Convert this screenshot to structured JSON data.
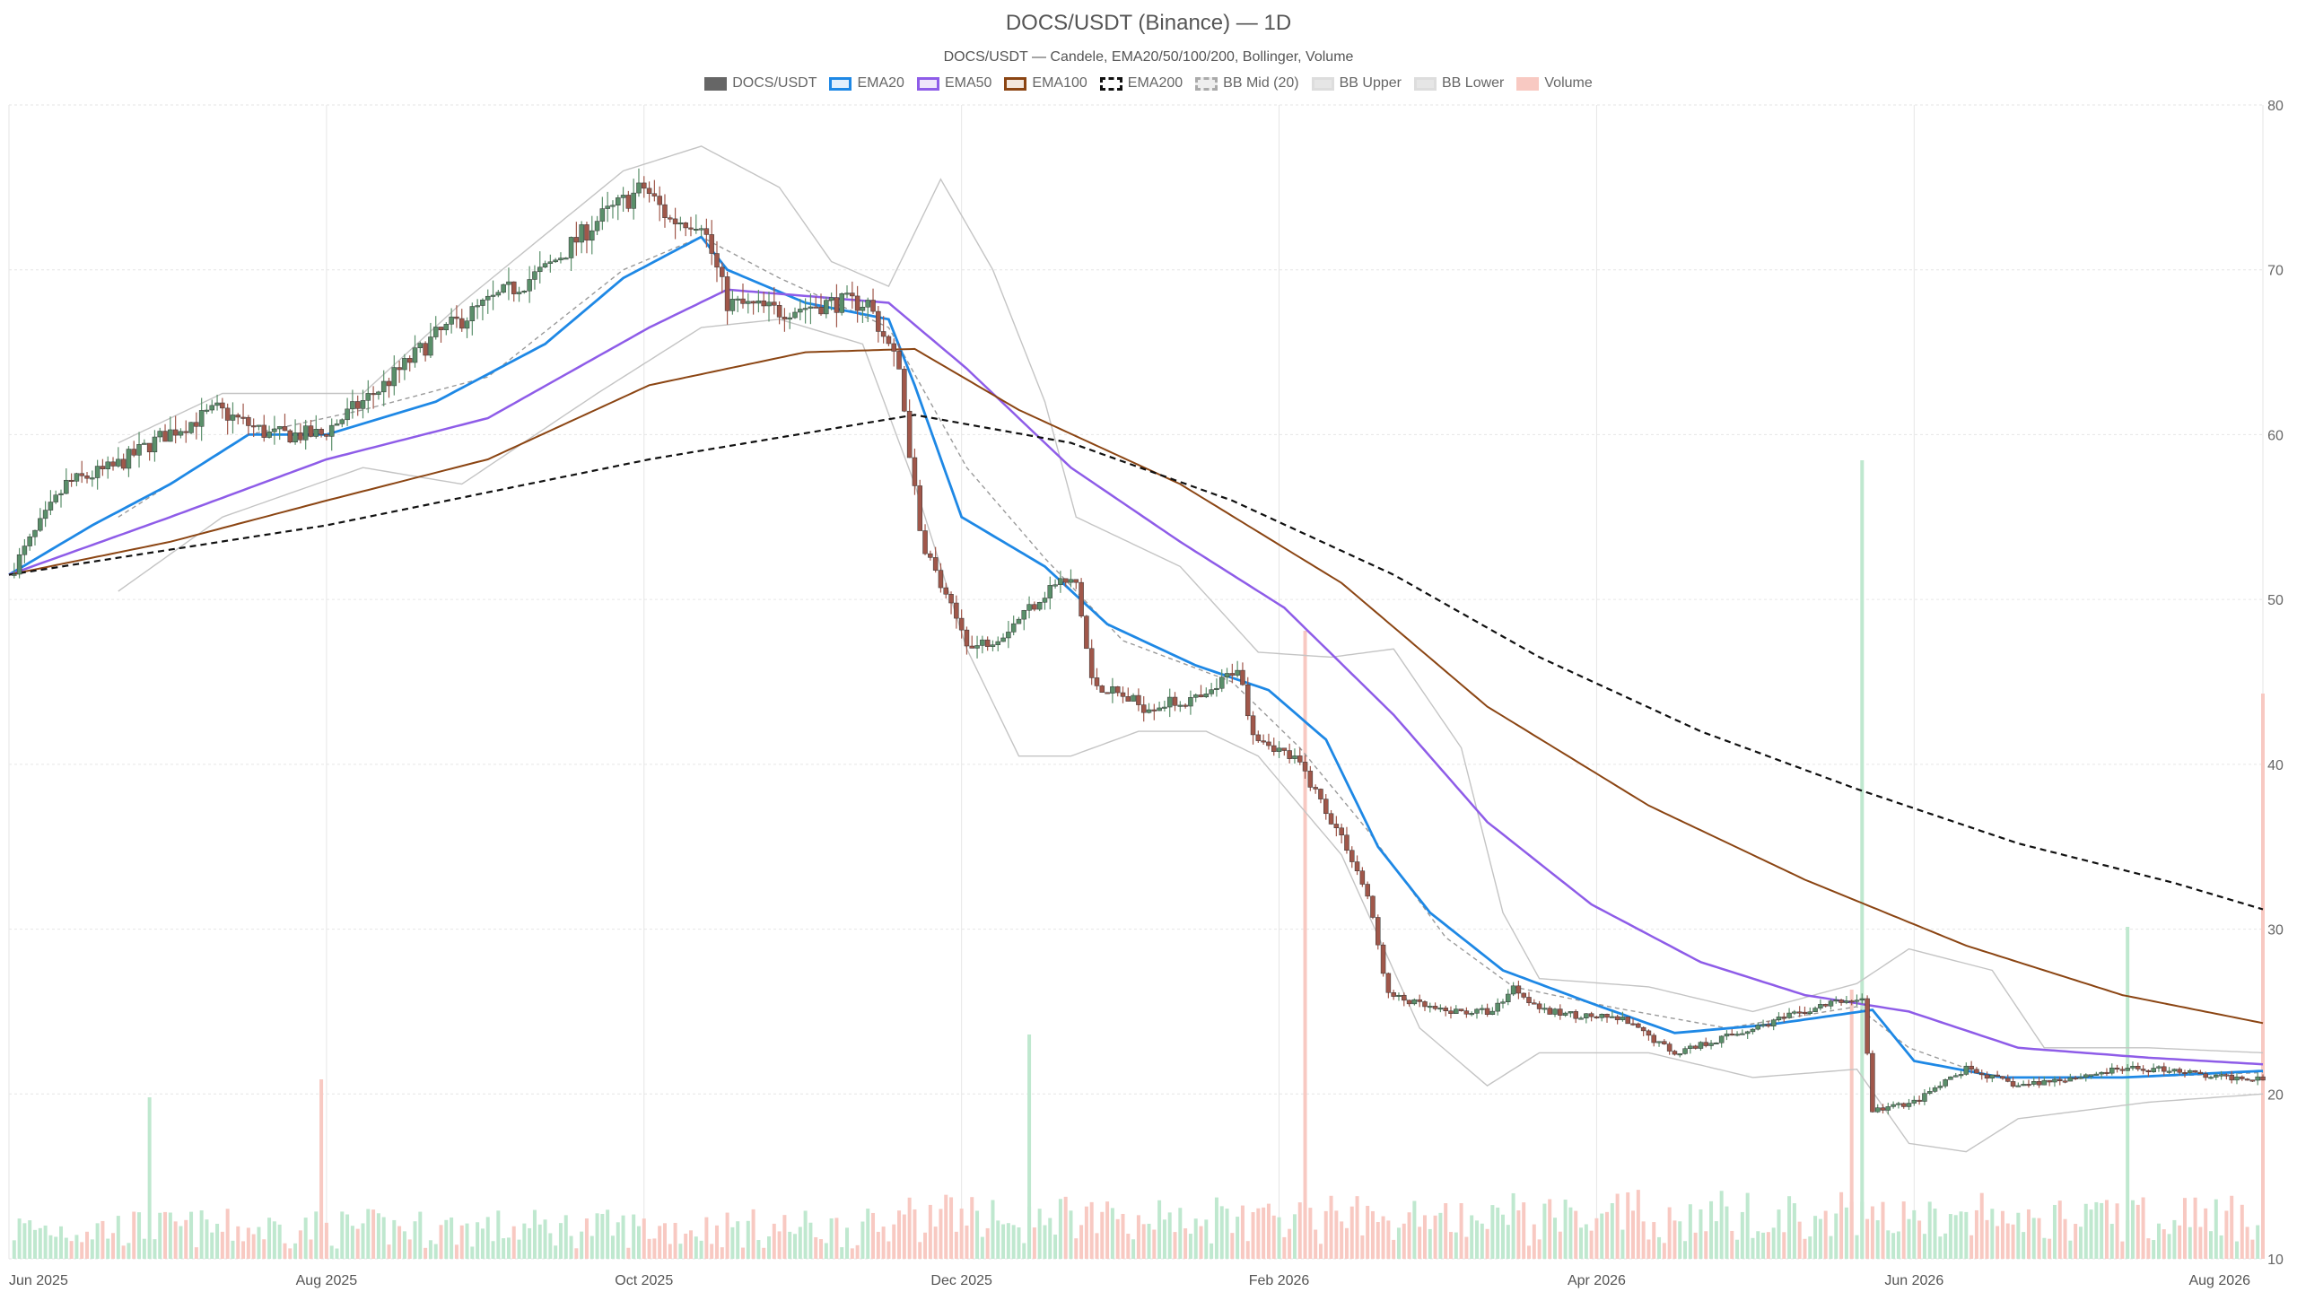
{
  "chart_data": {
    "type": "candlestick",
    "title": "DOCS/USDT (Binance) — 1D",
    "subtitle": "DOCS/USDT — Candele, EMA20/50/100/200, Bollinger, Volume",
    "legend_position": "top-center",
    "grid": true,
    "ylim": [
      10,
      80
    ],
    "y_ticks": [
      10,
      20,
      30,
      40,
      50,
      60,
      70,
      80
    ],
    "y_axis_side": "right",
    "x_range": [
      "2025-05-25",
      "2026-08-01"
    ],
    "x_ticks": [
      {
        "date": "2025-05-25",
        "label": "Jun 2025"
      },
      {
        "date": "2025-07-25",
        "label": "Aug 2025"
      },
      {
        "date": "2025-09-24",
        "label": "Oct 2025"
      },
      {
        "date": "2025-11-24",
        "label": "Dec 2025"
      },
      {
        "date": "2026-01-24",
        "label": "Feb 2026"
      },
      {
        "date": "2026-03-26",
        "label": "Apr 2026"
      },
      {
        "date": "2026-05-26",
        "label": "Jun 2026"
      },
      {
        "date": "2026-08-01",
        "label": "Aug 2026"
      }
    ],
    "legend": [
      {
        "label": "DOCS/USDT",
        "color": "#666666",
        "fill": "#666666",
        "dash": false
      },
      {
        "label": "EMA20",
        "color": "#1e88e5",
        "fill": "#e3f0fc",
        "dash": false
      },
      {
        "label": "EMA50",
        "color": "#8e5ce8",
        "fill": "#efe6fb",
        "dash": false
      },
      {
        "label": "EMA100",
        "color": "#8b4513",
        "fill": "#f3e7dd",
        "dash": false
      },
      {
        "label": "EMA200",
        "color": "#111111",
        "fill": "#ffffff",
        "dash": true
      },
      {
        "label": "BB Mid (20)",
        "color": "#aaaaaa",
        "fill": "#eeeeee",
        "dash": true
      },
      {
        "label": "BB Upper",
        "color": "#dddddd",
        "fill": "#e6e6e6",
        "dash": false
      },
      {
        "label": "BB Lower",
        "color": "#dddddd",
        "fill": "#e6e6e6",
        "dash": false
      },
      {
        "label": "Volume",
        "color": "#f8c9c2",
        "fill": "#f8c9c2",
        "dash": false
      }
    ],
    "colors": {
      "up": "#5a8f6a",
      "down": "#a0574a",
      "vol_up": "#bfe8cf",
      "vol_down": "#f8c9c2",
      "ema20": "#1e88e5",
      "ema50": "#8e5ce8",
      "ema100": "#8b4513",
      "ema200": "#111111",
      "bb": "#c4c4c4",
      "bb_mid": "#9a9a9a",
      "grid": "#e6e6e6"
    },
    "price_path": [
      [
        "2025-05-25",
        51.5
      ],
      [
        "2025-06-05",
        57
      ],
      [
        "2025-06-14",
        58
      ],
      [
        "2025-06-24",
        60
      ],
      [
        "2025-07-04",
        61.5
      ],
      [
        "2025-07-14",
        60
      ],
      [
        "2025-07-24",
        60
      ],
      [
        "2025-08-05",
        63
      ],
      [
        "2025-08-15",
        66
      ],
      [
        "2025-08-25",
        68
      ],
      [
        "2025-09-05",
        70
      ],
      [
        "2025-09-15",
        73
      ],
      [
        "2025-09-24",
        75
      ],
      [
        "2025-09-29",
        73
      ],
      [
        "2025-10-05",
        73
      ],
      [
        "2025-10-10",
        68
      ],
      [
        "2025-10-20",
        67.5
      ],
      [
        "2025-10-30",
        68
      ],
      [
        "2025-11-06",
        68
      ],
      [
        "2025-11-12",
        64
      ],
      [
        "2025-11-16",
        54
      ],
      [
        "2025-11-21",
        50
      ],
      [
        "2025-11-26",
        47
      ],
      [
        "2025-12-02",
        48
      ],
      [
        "2025-12-12",
        51
      ],
      [
        "2025-12-16",
        51
      ],
      [
        "2025-12-19",
        45
      ],
      [
        "2025-12-29",
        43.5
      ],
      [
        "2026-01-10",
        44
      ],
      [
        "2026-01-16",
        46
      ],
      [
        "2026-01-19",
        42
      ],
      [
        "2026-01-28",
        40
      ],
      [
        "2026-02-06",
        35
      ],
      [
        "2026-02-10",
        32
      ],
      [
        "2026-02-14",
        26
      ],
      [
        "2026-02-24",
        25
      ],
      [
        "2026-03-06",
        25
      ],
      [
        "2026-03-10",
        26.5
      ],
      [
        "2026-03-16",
        25
      ],
      [
        "2026-03-31",
        24.5
      ],
      [
        "2026-04-10",
        22.5
      ],
      [
        "2026-04-20",
        23.5
      ],
      [
        "2026-04-30",
        24.5
      ],
      [
        "2026-05-10",
        25.5
      ],
      [
        "2026-05-16",
        25.8
      ],
      [
        "2026-05-18",
        19
      ],
      [
        "2026-05-26",
        19.5
      ],
      [
        "2026-06-05",
        21.5
      ],
      [
        "2026-06-15",
        20.5
      ],
      [
        "2026-06-25",
        21
      ],
      [
        "2026-07-05",
        21.5
      ],
      [
        "2026-07-15",
        21.5
      ],
      [
        "2026-07-22",
        21
      ],
      [
        "2026-08-01",
        21
      ]
    ],
    "series": [
      {
        "name": "EMA20",
        "points": [
          [
            "2025-05-25",
            51.5
          ],
          [
            "2025-06-10",
            54.5
          ],
          [
            "2025-06-25",
            57
          ],
          [
            "2025-07-10",
            60
          ],
          [
            "2025-07-25",
            60
          ],
          [
            "2025-08-15",
            62
          ],
          [
            "2025-09-05",
            65.5
          ],
          [
            "2025-09-20",
            69.5
          ],
          [
            "2025-10-05",
            72
          ],
          [
            "2025-10-10",
            70
          ],
          [
            "2025-10-25",
            68
          ],
          [
            "2025-11-10",
            67
          ],
          [
            "2025-11-15",
            63
          ],
          [
            "2025-11-24",
            55
          ],
          [
            "2025-12-10",
            52
          ],
          [
            "2025-12-22",
            48.5
          ],
          [
            "2026-01-08",
            46
          ],
          [
            "2026-01-22",
            44.5
          ],
          [
            "2026-02-02",
            41.5
          ],
          [
            "2026-02-12",
            35
          ],
          [
            "2026-02-22",
            31
          ],
          [
            "2026-03-08",
            27.5
          ],
          [
            "2026-03-25",
            25.5
          ],
          [
            "2026-04-10",
            23.7
          ],
          [
            "2026-04-28",
            24.2
          ],
          [
            "2026-05-18",
            25.1
          ],
          [
            "2026-05-26",
            22
          ],
          [
            "2026-06-12",
            21
          ],
          [
            "2026-07-05",
            21
          ],
          [
            "2026-08-01",
            21.4
          ]
        ]
      },
      {
        "name": "EMA50",
        "points": [
          [
            "2025-05-25",
            51.5
          ],
          [
            "2025-06-25",
            55
          ],
          [
            "2025-07-25",
            58.5
          ],
          [
            "2025-08-25",
            61
          ],
          [
            "2025-09-25",
            66.5
          ],
          [
            "2025-10-10",
            68.8
          ],
          [
            "2025-11-10",
            68
          ],
          [
            "2025-11-25",
            64
          ],
          [
            "2025-12-15",
            58
          ],
          [
            "2026-01-05",
            53.5
          ],
          [
            "2026-01-25",
            49.5
          ],
          [
            "2026-02-15",
            43
          ],
          [
            "2026-03-05",
            36.5
          ],
          [
            "2026-03-25",
            31.5
          ],
          [
            "2026-04-15",
            28
          ],
          [
            "2026-05-05",
            26
          ],
          [
            "2026-05-25",
            25
          ],
          [
            "2026-06-15",
            22.8
          ],
          [
            "2026-07-10",
            22.2
          ],
          [
            "2026-08-01",
            21.8
          ]
        ]
      },
      {
        "name": "EMA100",
        "points": [
          [
            "2025-05-25",
            51.5
          ],
          [
            "2025-06-25",
            53.5
          ],
          [
            "2025-07-25",
            56
          ],
          [
            "2025-08-25",
            58.5
          ],
          [
            "2025-09-25",
            63
          ],
          [
            "2025-10-25",
            65
          ],
          [
            "2025-11-15",
            65.2
          ],
          [
            "2025-12-05",
            61.5
          ],
          [
            "2026-01-05",
            57
          ],
          [
            "2026-02-05",
            51
          ],
          [
            "2026-03-05",
            43.5
          ],
          [
            "2026-04-05",
            37.5
          ],
          [
            "2026-05-05",
            33
          ],
          [
            "2026-06-05",
            29
          ],
          [
            "2026-07-05",
            26
          ],
          [
            "2026-08-01",
            24.3
          ]
        ]
      },
      {
        "name": "EMA200",
        "points": [
          [
            "2025-05-25",
            51.5
          ],
          [
            "2025-07-25",
            54.5
          ],
          [
            "2025-09-25",
            58.5
          ],
          [
            "2025-11-15",
            61.2
          ],
          [
            "2025-12-15",
            59.5
          ],
          [
            "2026-01-15",
            56
          ],
          [
            "2026-02-15",
            51.5
          ],
          [
            "2026-03-15",
            46.5
          ],
          [
            "2026-04-15",
            42
          ],
          [
            "2026-05-15",
            38.5
          ],
          [
            "2026-06-15",
            35.2
          ],
          [
            "2026-07-15",
            32.8
          ],
          [
            "2026-08-01",
            31.2
          ]
        ]
      },
      {
        "name": "BB Mid (20)",
        "points": [
          [
            "2025-06-15",
            55
          ],
          [
            "2025-07-10",
            60
          ],
          [
            "2025-08-01",
            61.5
          ],
          [
            "2025-08-25",
            63.5
          ],
          [
            "2025-09-20",
            70
          ],
          [
            "2025-10-05",
            72
          ],
          [
            "2025-10-20",
            69.5
          ],
          [
            "2025-11-10",
            66.5
          ],
          [
            "2025-11-25",
            58
          ],
          [
            "2025-12-10",
            52.5
          ],
          [
            "2025-12-25",
            47.5
          ],
          [
            "2026-01-15",
            45
          ],
          [
            "2026-01-28",
            41
          ],
          [
            "2026-02-10",
            36
          ],
          [
            "2026-02-25",
            29.5
          ],
          [
            "2026-03-10",
            26.5
          ],
          [
            "2026-03-30",
            25.2
          ],
          [
            "2026-04-20",
            24
          ],
          [
            "2026-05-15",
            25.3
          ],
          [
            "2026-05-25",
            22.8
          ],
          [
            "2026-06-10",
            21
          ],
          [
            "2026-07-05",
            21
          ],
          [
            "2026-08-01",
            21.3
          ]
        ]
      },
      {
        "name": "BB Upper",
        "points": [
          [
            "2025-06-15",
            59.5
          ],
          [
            "2025-07-05",
            62.5
          ],
          [
            "2025-08-01",
            62.5
          ],
          [
            "2025-08-20",
            68
          ],
          [
            "2025-09-20",
            76
          ],
          [
            "2025-10-05",
            77.5
          ],
          [
            "2025-10-20",
            75
          ],
          [
            "2025-10-30",
            70.5
          ],
          [
            "2025-11-10",
            69
          ],
          [
            "2025-11-20",
            75.5
          ],
          [
            "2025-11-30",
            70
          ],
          [
            "2025-12-10",
            62
          ],
          [
            "2025-12-16",
            55
          ],
          [
            "2026-01-05",
            52
          ],
          [
            "2026-01-20",
            46.8
          ],
          [
            "2026-02-03",
            46.5
          ],
          [
            "2026-02-15",
            47
          ],
          [
            "2026-02-28",
            41
          ],
          [
            "2026-03-08",
            31
          ],
          [
            "2026-03-15",
            27
          ],
          [
            "2026-04-05",
            26.5
          ],
          [
            "2026-04-25",
            25
          ],
          [
            "2026-05-15",
            26.7
          ],
          [
            "2026-05-25",
            28.8
          ],
          [
            "2026-06-10",
            27.5
          ],
          [
            "2026-06-20",
            22.8
          ],
          [
            "2026-07-10",
            22.8
          ],
          [
            "2026-08-01",
            22.5
          ]
        ]
      },
      {
        "name": "BB Lower",
        "points": [
          [
            "2025-06-15",
            50.5
          ],
          [
            "2025-07-05",
            55
          ],
          [
            "2025-08-01",
            58
          ],
          [
            "2025-08-20",
            57
          ],
          [
            "2025-09-15",
            62.5
          ],
          [
            "2025-10-05",
            66.5
          ],
          [
            "2025-10-20",
            67
          ],
          [
            "2025-11-05",
            65.5
          ],
          [
            "2025-11-15",
            57
          ],
          [
            "2025-11-25",
            47
          ],
          [
            "2025-12-05",
            40.5
          ],
          [
            "2025-12-15",
            40.5
          ],
          [
            "2025-12-28",
            42
          ],
          [
            "2026-01-10",
            42
          ],
          [
            "2026-01-20",
            40.5
          ],
          [
            "2026-02-05",
            34.5
          ],
          [
            "2026-02-20",
            24
          ],
          [
            "2026-03-05",
            20.5
          ],
          [
            "2026-03-15",
            22.5
          ],
          [
            "2026-04-05",
            22.5
          ],
          [
            "2026-04-25",
            21
          ],
          [
            "2026-05-15",
            21.5
          ],
          [
            "2026-05-25",
            17
          ],
          [
            "2026-06-05",
            16.5
          ],
          [
            "2026-06-15",
            18.5
          ],
          [
            "2026-07-10",
            19.5
          ],
          [
            "2026-08-01",
            20
          ]
        ]
      }
    ],
    "volume_spikes": [
      {
        "date": "2026-01-29",
        "volume": 0.7
      },
      {
        "date": "2026-05-16",
        "volume": 0.89
      },
      {
        "date": "2026-05-14",
        "volume": 0.3
      },
      {
        "date": "2026-07-06",
        "volume": 0.37
      },
      {
        "date": "2026-08-01",
        "volume": 0.63
      },
      {
        "date": "2025-12-07",
        "volume": 0.25
      },
      {
        "date": "2025-07-24",
        "volume": 0.2
      },
      {
        "date": "2025-06-21",
        "volume": 0.18
      }
    ]
  }
}
